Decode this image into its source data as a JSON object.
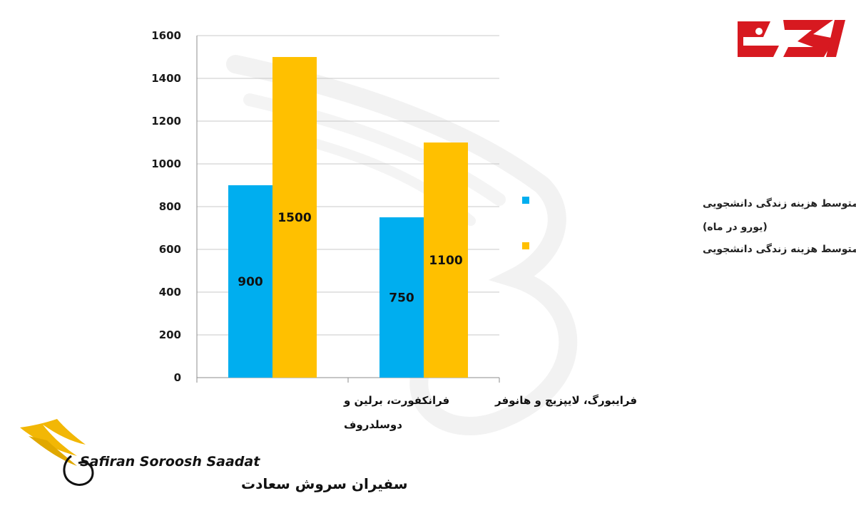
{
  "chart_data": {
    "type": "bar",
    "categories": [
      [
        "فرانکفورت، برلین و",
        "دوسلدروف"
      ],
      [
        "فرایبورگ، لایپزیچ و هانوفر"
      ]
    ],
    "series": [
      {
        "name": "متوسط هزینه زندگی دانشجویی",
        "name_line2": "(یورو در ماه)",
        "values": [
          900,
          750
        ],
        "color": "#00AEEF"
      },
      {
        "name": "متوسط هزینه زندگی دانشجویی",
        "values": [
          1500,
          1100
        ],
        "color": "#FFC000"
      }
    ],
    "ylim": [
      0,
      1600
    ],
    "yticks": [
      "0",
      "200",
      "400",
      "600",
      "800",
      "1000",
      "1200",
      "1400",
      "1600"
    ],
    "grid": true,
    "legend_position": "right"
  },
  "branding": {
    "top_logo_color": "#D71920",
    "company_latin": "Safiran Soroosh Saadat",
    "company_persian": "سفیران سروش سعادت",
    "logo_gold": "#F2B705"
  }
}
